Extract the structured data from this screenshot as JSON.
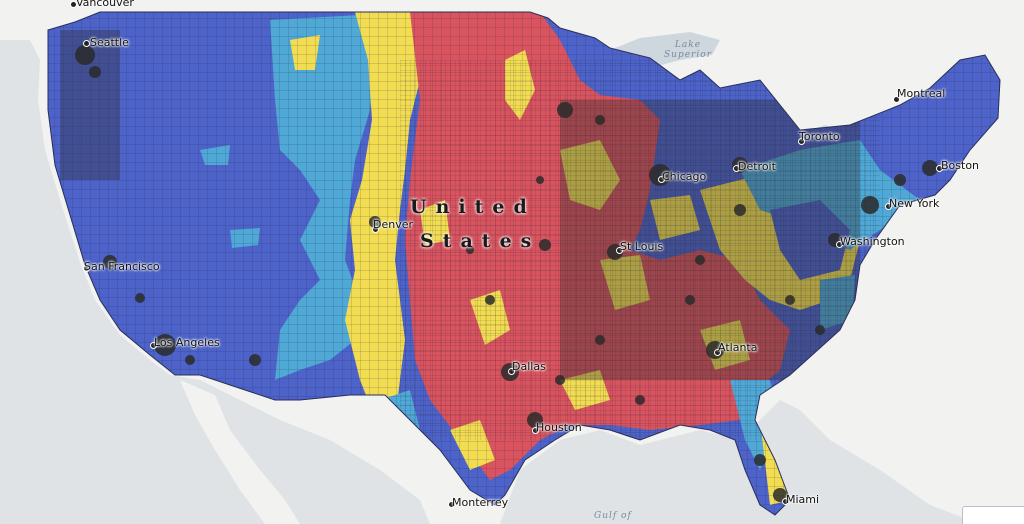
{
  "map": {
    "country_label": {
      "line1": "United",
      "line2": "States"
    },
    "cities": [
      {
        "id": "vancouver",
        "name": "Vancouver"
      },
      {
        "id": "seattle",
        "name": "Seattle"
      },
      {
        "id": "san-francisco",
        "name": "San Francisco"
      },
      {
        "id": "los-angeles",
        "name": "Los Angeles"
      },
      {
        "id": "denver",
        "name": "Denver"
      },
      {
        "id": "dallas",
        "name": "Dallas"
      },
      {
        "id": "houston",
        "name": "Houston"
      },
      {
        "id": "monterrey",
        "name": "Monterrey"
      },
      {
        "id": "st-louis",
        "name": "St Louis"
      },
      {
        "id": "chicago",
        "name": "Chicago"
      },
      {
        "id": "detroit",
        "name": "Detroit"
      },
      {
        "id": "toronto",
        "name": "Toronto"
      },
      {
        "id": "montreal",
        "name": "Montreal"
      },
      {
        "id": "boston",
        "name": "Boston"
      },
      {
        "id": "new-york",
        "name": "New York"
      },
      {
        "id": "washington",
        "name": "Washington"
      },
      {
        "id": "atlanta",
        "name": "Atlanta"
      },
      {
        "id": "miami",
        "name": "Miami"
      }
    ],
    "water_labels": [
      {
        "id": "lake-superior",
        "lines": [
          "Lake",
          "Superior"
        ]
      },
      {
        "id": "gulf-of-mexico",
        "lines": [
          "Gulf of"
        ]
      }
    ],
    "colors": {
      "ocean": "#dfe3e6",
      "land": "#f2f2f0",
      "category_dark_blue": "#4d63c9",
      "category_light_blue": "#4fa8d6",
      "category_yellow": "#f2dc52",
      "category_red": "#d9545f",
      "urban": "#2b2b2b"
    }
  }
}
